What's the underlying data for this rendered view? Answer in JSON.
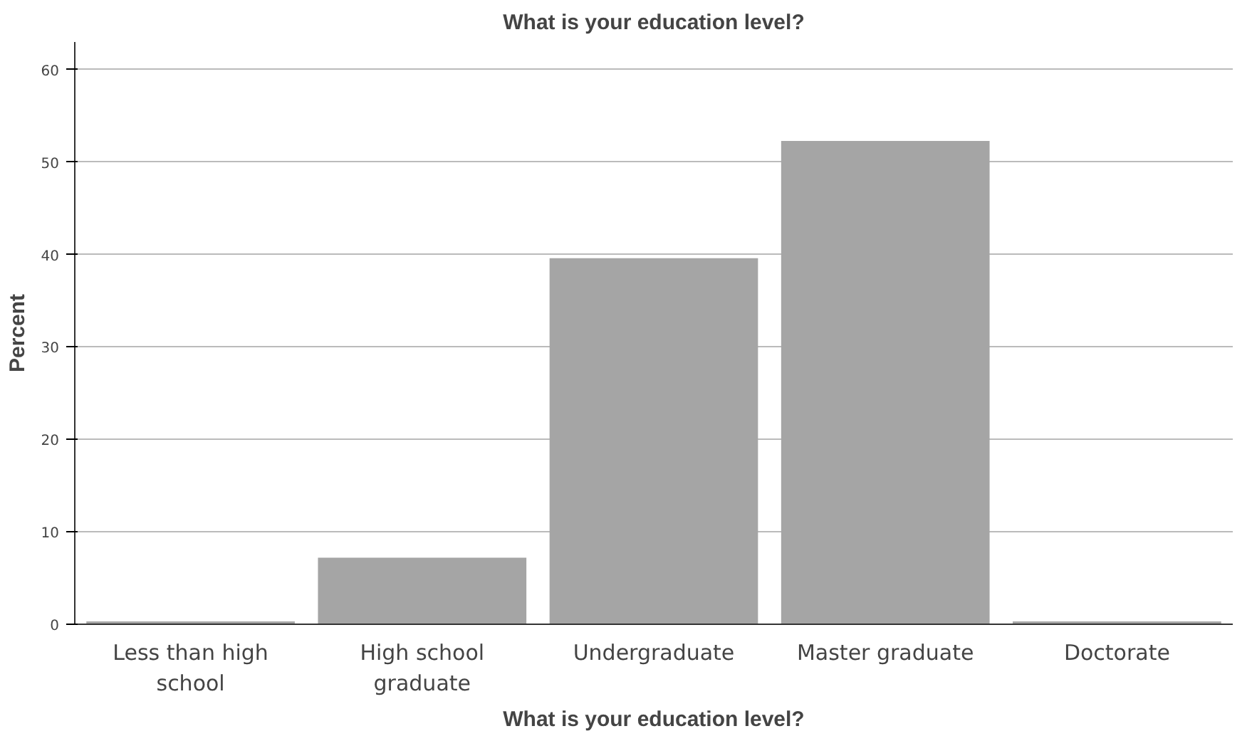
{
  "chart_data": {
    "type": "bar",
    "title": "What is your education level?",
    "xlabel": "What is your education level?",
    "ylabel": "Percent",
    "categories": [
      "Less than high\nschool",
      "High school\ngraduate",
      "Undergraduate",
      "Master graduate",
      "Doctorate"
    ],
    "values": [
      0.3,
      7.2,
      39.6,
      52.3,
      0.3
    ],
    "color": "#a5a5a5",
    "ylim": [
      0,
      63
    ],
    "yticks": [
      0,
      10,
      20,
      30,
      40,
      50,
      60
    ],
    "grid": "y"
  }
}
